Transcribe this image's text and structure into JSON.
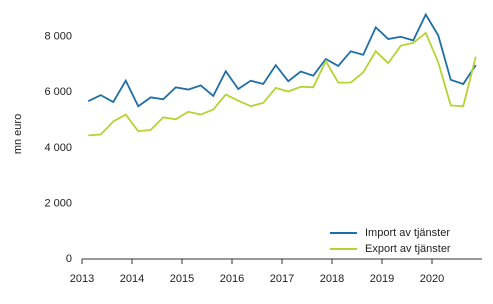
{
  "chart_data": {
    "type": "line",
    "y_label": "mn euro",
    "x": [
      2013.125,
      2013.375,
      2013.625,
      2013.875,
      2014.125,
      2014.375,
      2014.625,
      2014.875,
      2015.125,
      2015.375,
      2015.625,
      2015.875,
      2016.125,
      2016.375,
      2016.625,
      2016.875,
      2017.125,
      2017.375,
      2017.625,
      2017.875,
      2018.125,
      2018.375,
      2018.625,
      2018.875,
      2019.125,
      2019.375,
      2019.625,
      2019.875,
      2020.125,
      2020.375,
      2020.625,
      2020.875
    ],
    "series": [
      {
        "name": "Import av tjänster",
        "color": "#1f6fa6",
        "values": [
          5680,
          5900,
          5650,
          6420,
          5500,
          5820,
          5750,
          6180,
          6100,
          6250,
          5870,
          6760,
          6120,
          6420,
          6300,
          6980,
          6400,
          6750,
          6600,
          7200,
          6950,
          7480,
          7350,
          8340,
          7920,
          8000,
          7870,
          8800,
          8050,
          6450,
          6300,
          6980
        ]
      },
      {
        "name": "Export av tjänster",
        "color": "#b5d334",
        "values": [
          4450,
          4480,
          4950,
          5200,
          4600,
          4650,
          5100,
          5030,
          5300,
          5200,
          5380,
          5920,
          5700,
          5500,
          5620,
          6160,
          6030,
          6200,
          6180,
          7120,
          6350,
          6350,
          6720,
          7480,
          7050,
          7680,
          7780,
          8140,
          7080,
          5530,
          5500,
          7280
        ]
      }
    ],
    "xlim": [
      2013,
      2021
    ],
    "xticks": [
      2013,
      2014,
      2015,
      2016,
      2017,
      2018,
      2019,
      2020
    ],
    "ylim": [
      0,
      9000
    ],
    "yticks": [
      0,
      {
        "value": 2000,
        "label": "2 000"
      },
      {
        "value": 4000,
        "label": "4 000"
      },
      {
        "value": 6000,
        "label": "6 000"
      },
      {
        "value": 8000,
        "label": "8 000"
      }
    ],
    "grid": false,
    "legend": "lower right"
  }
}
